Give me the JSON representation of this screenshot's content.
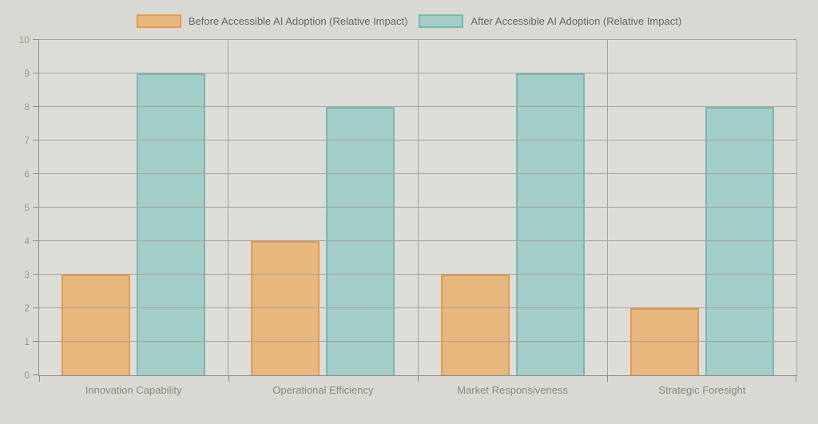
{
  "chart_data": {
    "type": "bar",
    "title": "",
    "xlabel": "",
    "ylabel": "",
    "categories": [
      "Innovation Capability",
      "Operational Efficiency",
      "Market Responsiveness",
      "Strategic Foresight"
    ],
    "series": [
      {
        "name": "Before Accessible AI Adoption (Relative Impact)",
        "values": [
          3,
          4,
          3,
          2
        ],
        "fill_color": "#e8b77d",
        "border_color": "#df9c51"
      },
      {
        "name": "After Accessible AI Adoption (Relative Impact)",
        "values": [
          9,
          8,
          9,
          8
        ],
        "fill_color": "#a3cdc9",
        "border_color": "#79b7b1"
      }
    ],
    "ylim": [
      0,
      10
    ],
    "ytick_step": 1,
    "ytick_labels": [
      "0",
      "1",
      "2",
      "3",
      "4",
      "5",
      "6",
      "7",
      "8",
      "9",
      "10"
    ],
    "grid": true,
    "gridlines_over_bars": true,
    "legend_position": "top"
  },
  "colors": {
    "page_background": "#dad8d2",
    "plot_background": "#dedcd7",
    "gridline": "#a5a39d",
    "axis_line": "#8e8c85",
    "legend_text": "#63676a",
    "ytick_text": "#9a988f",
    "category_text": "#8b8981"
  }
}
